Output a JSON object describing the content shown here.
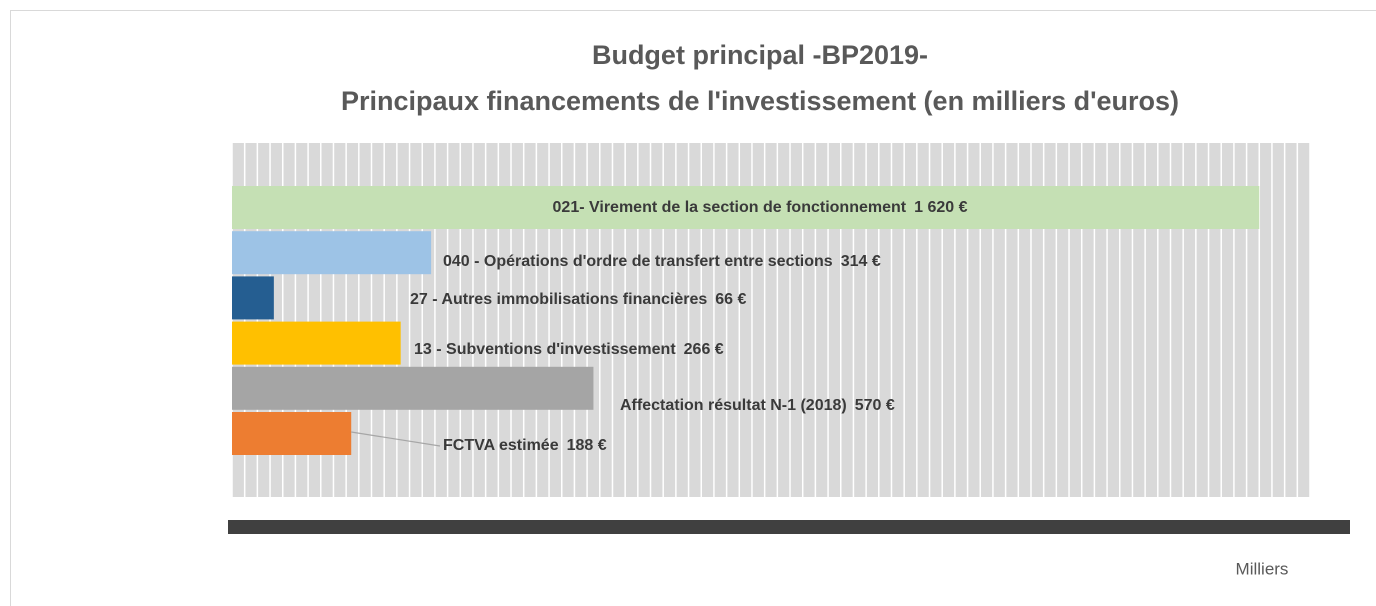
{
  "chart_data": {
    "type": "hbar",
    "title": "Budget principal -BP2019-",
    "subtitle": "Principaux financements de l'investissement (en milliers d'euros)",
    "categories": [
      "021- Virement de la section de fonctionnement",
      "040 - Opérations d'ordre de transfert entre sections",
      "27 - Autres immobilisations  financières",
      "13 - Subventions d'investissement",
      "Affectation résultat N-1 (2018)",
      "FCTVA estimée"
    ],
    "values": [
      1620,
      314,
      66,
      266,
      570,
      188
    ],
    "value_labels": [
      "1 620 €",
      "314 €",
      "66 €",
      "266 €",
      "570 €",
      "188 €"
    ],
    "colors": [
      "#c5e0b4",
      "#9dc3e6",
      "#255e91",
      "#ffc000",
      "#a5a5a5",
      "#ed7d31"
    ],
    "xlim": [
      0,
      1700
    ],
    "xticks": [
      0,
      20,
      40,
      60,
      80,
      100,
      120,
      140,
      160,
      180,
      200,
      220,
      240,
      260,
      280,
      300,
      320,
      340,
      360,
      380,
      400,
      420,
      440,
      460,
      480,
      500,
      520,
      540,
      560,
      580,
      600,
      620,
      640,
      660,
      680,
      700,
      720,
      740,
      760,
      780,
      800,
      820,
      840,
      860,
      880,
      900,
      920,
      940,
      960,
      980,
      1000,
      1020,
      1040,
      1060,
      1080,
      1100,
      1120,
      1140,
      1160,
      1180,
      1200,
      1220,
      1240,
      1260,
      1280,
      1300,
      1320,
      1340,
      1360,
      1380,
      1400,
      1420,
      1440,
      1460,
      1480,
      1500,
      1520,
      1540,
      1560,
      1580,
      1600,
      1620,
      1640,
      1660,
      1680,
      1700
    ],
    "x_label": "Milliers",
    "grid": true
  }
}
